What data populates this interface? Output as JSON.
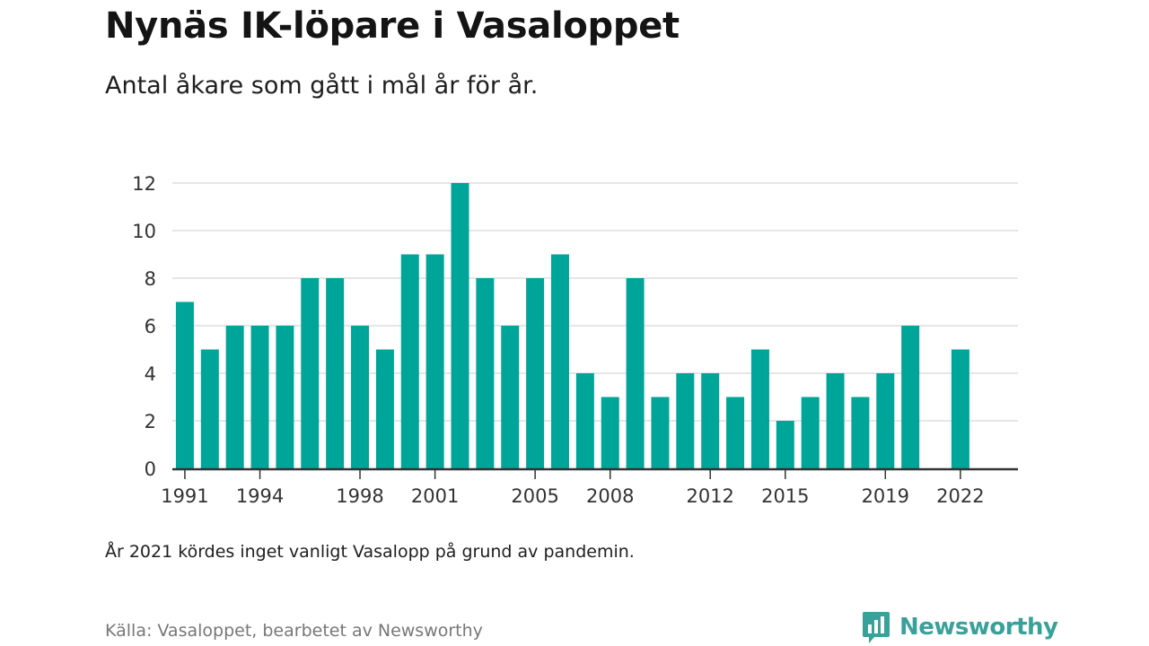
{
  "header": {
    "title": "Nynäs IK-löpare i Vasaloppet",
    "subtitle": "Antal åkare som gått i mål år för år."
  },
  "footer": {
    "note": "År 2021 kördes inget vanligt Vasalopp på grund av pandemin.",
    "source": "Källa: Vasaloppet, bearbetet av Newsworthy",
    "brand": "Newsworthy",
    "brand_icon": "newsworthy-logo-icon"
  },
  "colors": {
    "bar": "#00a59a",
    "grid": "#dddddd",
    "axis": "#333333",
    "brand": "#3aa19a"
  },
  "chart_data": {
    "type": "bar",
    "title": "Nynäs IK-löpare i Vasaloppet",
    "subtitle": "Antal åkare som gått i mål år för år.",
    "xlabel": "",
    "ylabel": "",
    "x": [
      1991,
      1992,
      1993,
      1994,
      1995,
      1996,
      1997,
      1998,
      1999,
      2000,
      2001,
      2002,
      2003,
      2004,
      2005,
      2006,
      2007,
      2008,
      2009,
      2010,
      2011,
      2012,
      2013,
      2014,
      2015,
      2016,
      2017,
      2018,
      2019,
      2020,
      2022
    ],
    "values": [
      7,
      5,
      6,
      6,
      6,
      8,
      8,
      6,
      5,
      9,
      9,
      12,
      8,
      6,
      8,
      9,
      4,
      3,
      8,
      3,
      4,
      4,
      3,
      5,
      2,
      3,
      4,
      3,
      4,
      6,
      5
    ],
    "xlim": [
      1990.5,
      2024.3
    ],
    "ylim": [
      0,
      12
    ],
    "yticks": [
      0,
      2,
      4,
      6,
      8,
      10,
      12
    ],
    "xtick_labels": [
      "1991",
      "1994",
      "1998",
      "2001",
      "2005",
      "2008",
      "2012",
      "2015",
      "2019",
      "2022"
    ],
    "grid": true,
    "legend": "none"
  }
}
